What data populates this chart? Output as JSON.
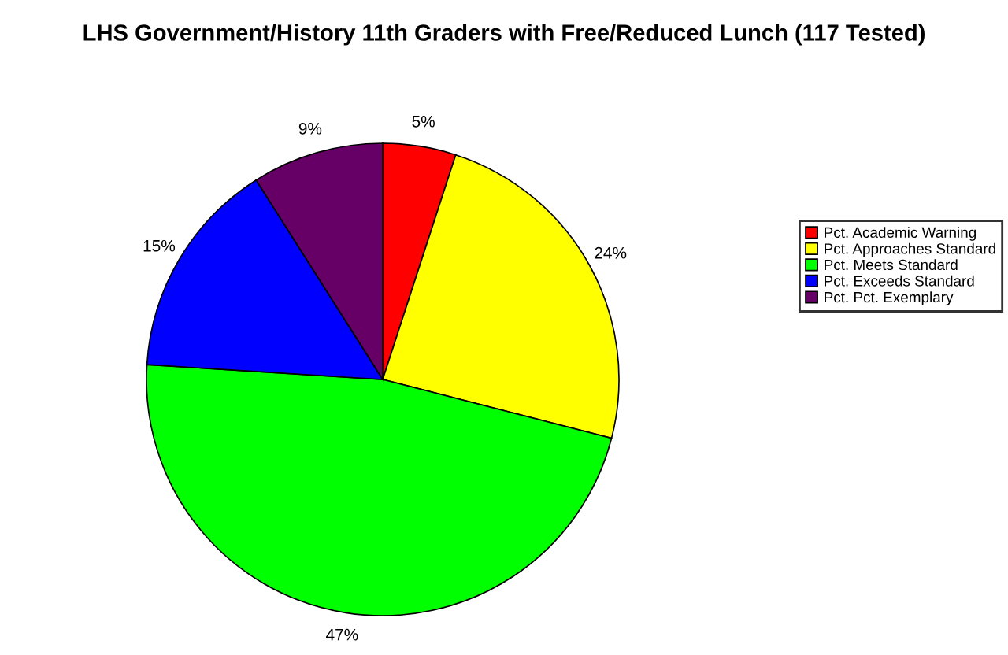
{
  "chart_data": {
    "type": "pie",
    "title": "LHS Government/History 11th Graders with Free/Reduced Lunch (117 Tested)",
    "categories": [
      "Pct. Academic Warning",
      "Pct. Approaches Standard",
      "Pct. Meets Standard",
      "Pct. Exceeds Standard",
      "Pct. Pct. Exemplary"
    ],
    "values": [
      5,
      24,
      47,
      15,
      9
    ],
    "colors": [
      "#ff0000",
      "#ffff00",
      "#00ff00",
      "#0000ff",
      "#660066"
    ],
    "value_labels": [
      "5%",
      "24%",
      "47%",
      "15%",
      "9%"
    ],
    "legend": "right"
  }
}
